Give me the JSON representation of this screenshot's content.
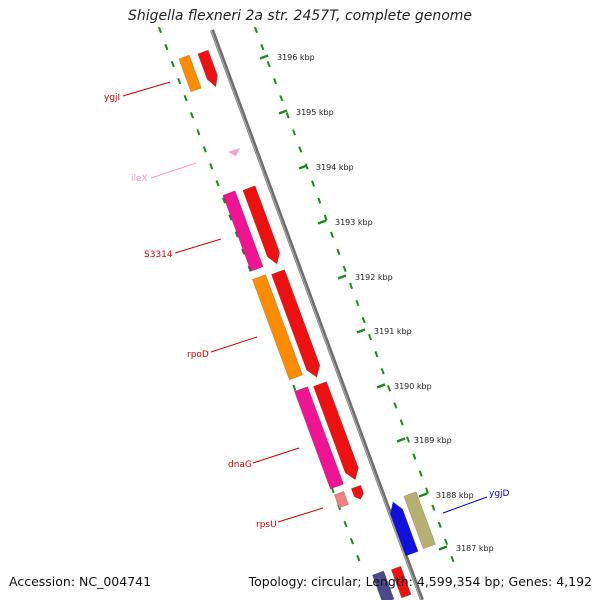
{
  "title": "Shigella flexneri 2a str. 2457T, complete genome",
  "footer": {
    "accession": "Accession: NC_004741",
    "topology": "Topology: circular; Length: 4,599,354 bp; Genes: 4,192"
  },
  "colors": {
    "backbone": "#777777",
    "ticks": "#1a8a1a",
    "cds_forward": "#ee1111",
    "gene_orange": "#ff8c00",
    "gene_pink": "#ee1493",
    "trna_pink": "#f7a0c8",
    "rrna_blue": "#1111dd",
    "olive": "#b8b070",
    "label_red": "#cc0000",
    "label_blue": "#0000cc"
  },
  "scale": {
    "unit": "kbp",
    "labels": [
      "3196 kbp",
      "3195 kbp",
      "3194 kbp",
      "3193 kbp",
      "3192 kbp",
      "3191 kbp",
      "3190 kbp",
      "3189 kbp",
      "3188 kbp",
      "3187 kbp"
    ]
  },
  "gene_labels": [
    {
      "name": "ygjI",
      "color": "#cc0000"
    },
    {
      "name": "ileX",
      "color": "#ff99cc"
    },
    {
      "name": "S3314",
      "color": "#cc0000"
    },
    {
      "name": "rpoD",
      "color": "#cc0000"
    },
    {
      "name": "dnaG",
      "color": "#cc0000"
    },
    {
      "name": "rpsU",
      "color": "#cc0000"
    },
    {
      "name": "ygjD",
      "color": "#0000cc"
    }
  ]
}
